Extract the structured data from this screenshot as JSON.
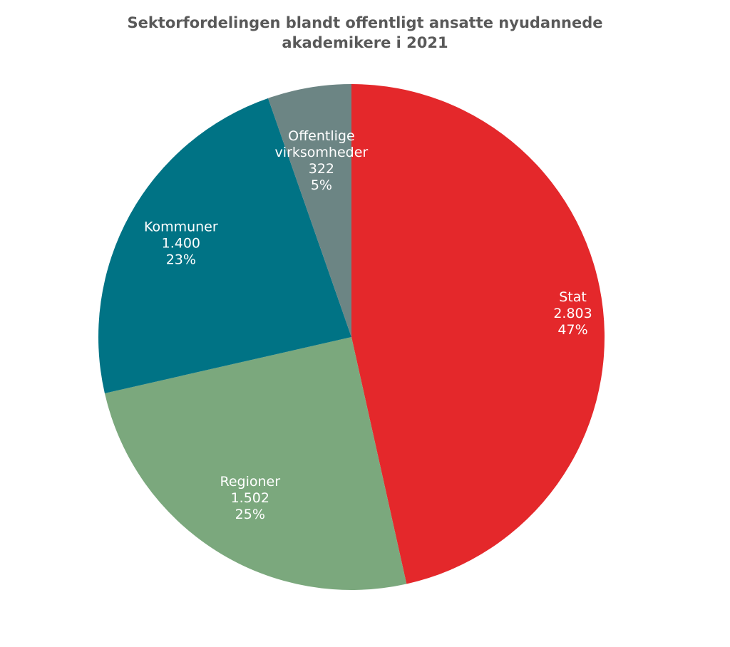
{
  "chart_data": {
    "type": "pie",
    "title_lines": [
      "Sektorfordelingen blandt offentligt ansatte nyudannede",
      "akademikere i 2021"
    ],
    "categories": [
      "Stat",
      "Regioner",
      "Kommuner",
      "Offentlige virksomheder"
    ],
    "values": [
      2803,
      1502,
      1400,
      322
    ],
    "value_labels": [
      "2.803",
      "1.502",
      "1.400",
      "322"
    ],
    "percent_labels": [
      "47%",
      "25%",
      "23%",
      "5%"
    ],
    "category_label_lines": [
      [
        "Stat"
      ],
      [
        "Regioner"
      ],
      [
        "Kommuner"
      ],
      [
        "Offentlige",
        "virksomheder"
      ]
    ],
    "colors": [
      "#E4282B",
      "#7BA87D",
      "#007385",
      "#6C8584"
    ],
    "start": "12 o'clock",
    "direction": "clockwise",
    "legend": "none",
    "label_color": "#FFFFFF"
  }
}
